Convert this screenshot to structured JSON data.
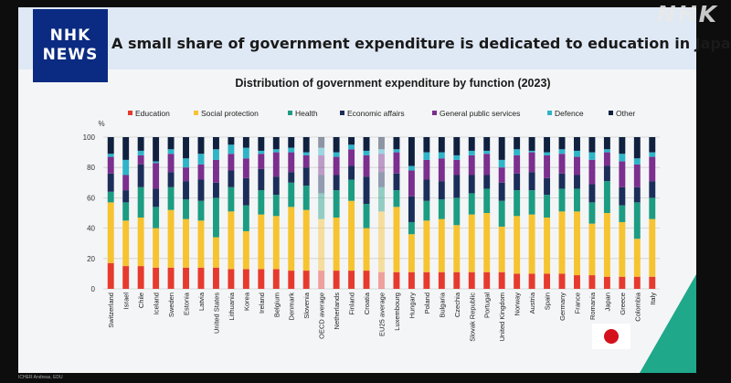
{
  "broadcaster": {
    "logo_line1": "NHK",
    "logo_line2": "NEWS",
    "watermark": "NHK"
  },
  "headline": "A small share of government expenditure is dedicated to education in Japan",
  "source_credit": "ICHER Andreas, EDU",
  "colors": {
    "header_bg": "#dfe9f5",
    "slide_bg": "#f4f5f6",
    "accent_triangle": "#1fa88a",
    "Education": "#e63a2e",
    "Social protection": "#f6c331",
    "Health": "#1c9c82",
    "Economic affairs": "#1b2e5a",
    "General public services": "#7b2f8e",
    "Defence": "#2fb4c8",
    "Other": "#10203f"
  },
  "chart_data": {
    "type": "bar",
    "stacked": true,
    "title": "Distribution of government expenditure by function (2023)",
    "ylabel": "%",
    "ylim": [
      0,
      100
    ],
    "yticks": [
      0,
      20,
      40,
      60,
      80,
      100
    ],
    "legend_position": "top",
    "highlighted_categories": [
      "OECD average",
      "EU25 average"
    ],
    "categories": [
      "Switzerland",
      "Israel",
      "Chile",
      "Iceland",
      "Sweden",
      "Estonia",
      "Latvia",
      "United States",
      "Lithuania",
      "Korea",
      "Ireland",
      "Belgium",
      "Denmark",
      "Slovenia",
      "OECD average",
      "Netherlands",
      "Finland",
      "Croatia",
      "EU25 average",
      "Luxembourg",
      "Hungary",
      "Poland",
      "Bulgaria",
      "Czechia",
      "Slovak Republic",
      "Portugal",
      "United Kingdom",
      "Norway",
      "Austria",
      "Spain",
      "Germany",
      "France",
      "Romania",
      "Japan",
      "Greece",
      "Colombia",
      "Italy"
    ],
    "series": [
      {
        "name": "Education",
        "values": [
          17,
          15,
          15,
          14,
          14,
          14,
          14,
          14,
          13,
          13,
          13,
          13,
          12,
          12,
          12,
          12,
          12,
          12,
          11,
          11,
          11,
          11,
          11,
          11,
          11,
          11,
          11,
          10,
          10,
          10,
          10,
          9,
          9,
          8,
          8,
          8,
          8
        ]
      },
      {
        "name": "Social protection",
        "values": [
          40,
          30,
          32,
          26,
          38,
          32,
          31,
          20,
          38,
          25,
          36,
          35,
          42,
          40,
          34,
          35,
          46,
          28,
          40,
          43,
          25,
          34,
          35,
          31,
          38,
          39,
          30,
          38,
          39,
          37,
          41,
          42,
          34,
          42,
          36,
          25,
          38
        ]
      },
      {
        "name": "Health",
        "values": [
          7,
          12,
          20,
          14,
          15,
          13,
          13,
          26,
          16,
          17,
          16,
          14,
          16,
          16,
          17,
          18,
          14,
          16,
          16,
          11,
          8,
          13,
          13,
          18,
          14,
          16,
          17,
          17,
          16,
          15,
          15,
          15,
          14,
          21,
          11,
          24,
          14
        ]
      },
      {
        "name": "Economic affairs",
        "values": [
          12,
          8,
          15,
          12,
          10,
          12,
          14,
          10,
          11,
          18,
          14,
          12,
          7,
          12,
          12,
          10,
          9,
          18,
          10,
          11,
          17,
          14,
          12,
          15,
          12,
          9,
          12,
          11,
          12,
          11,
          10,
          9,
          12,
          10,
          12,
          10,
          11
        ]
      },
      {
        "name": "General public services",
        "values": [
          11,
          10,
          6,
          17,
          12,
          9,
          10,
          15,
          11,
          13,
          10,
          16,
          13,
          8,
          13,
          12,
          11,
          14,
          12,
          14,
          17,
          13,
          15,
          10,
          13,
          14,
          10,
          12,
          13,
          15,
          13,
          12,
          16,
          9,
          17,
          15,
          16
        ]
      },
      {
        "name": "Defence",
        "values": [
          2,
          10,
          3,
          1,
          3,
          6,
          7,
          7,
          6,
          7,
          2,
          2,
          3,
          2,
          5,
          3,
          3,
          3,
          3,
          2,
          3,
          5,
          4,
          3,
          3,
          2,
          5,
          4,
          1,
          2,
          3,
          4,
          5,
          2,
          5,
          4,
          3
        ]
      },
      {
        "name": "Other",
        "values": [
          11,
          15,
          9,
          16,
          8,
          14,
          11,
          8,
          5,
          7,
          9,
          8,
          7,
          10,
          7,
          10,
          5,
          9,
          8,
          8,
          19,
          10,
          10,
          12,
          9,
          9,
          15,
          8,
          9,
          10,
          8,
          9,
          10,
          8,
          11,
          14,
          10
        ]
      }
    ]
  }
}
